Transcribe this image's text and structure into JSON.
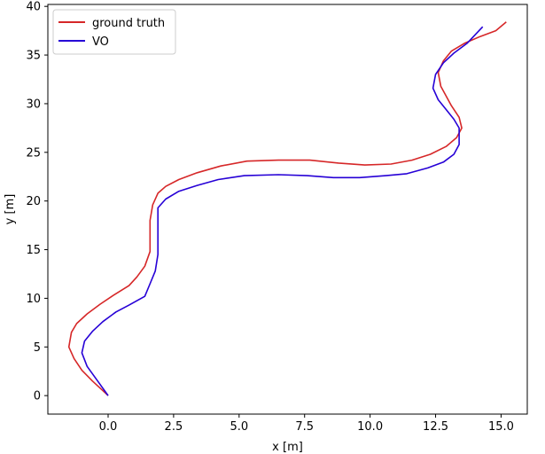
{
  "chart_data": {
    "type": "line",
    "xlabel": "x [m]",
    "ylabel": "y [m]",
    "xlim": [
      -2.3,
      16.0
    ],
    "ylim": [
      -1.9,
      40.2
    ],
    "xticks": [
      0.0,
      2.5,
      5.0,
      7.5,
      10.0,
      12.5,
      15.0
    ],
    "xtick_labels": [
      "0.0",
      "2.5",
      "5.0",
      "7.5",
      "10.0",
      "12.5",
      "15.0"
    ],
    "yticks": [
      0,
      5,
      10,
      15,
      20,
      25,
      30,
      35,
      40
    ],
    "ytick_labels": [
      "0",
      "5",
      "10",
      "15",
      "20",
      "25",
      "30",
      "35",
      "40"
    ],
    "grid": false,
    "legend_position": "top-left",
    "series": [
      {
        "name": "ground truth",
        "color": "#d62728",
        "x": [
          0.0,
          -0.6,
          -1.0,
          -1.3,
          -1.5,
          -1.4,
          -1.2,
          -0.8,
          -0.3,
          0.2,
          0.8,
          1.1,
          1.4,
          1.6,
          1.6,
          1.6,
          1.7,
          1.9,
          2.2,
          2.7,
          3.4,
          4.3,
          5.3,
          6.5,
          7.7,
          8.8,
          9.8,
          10.8,
          11.6,
          12.3,
          12.9,
          13.3,
          13.5,
          13.4,
          13.1,
          12.9,
          12.7,
          12.6,
          12.8,
          13.1,
          13.6,
          14.2,
          14.8,
          15.2
        ],
        "y": [
          0.0,
          1.5,
          2.6,
          3.8,
          5.0,
          6.5,
          7.4,
          8.4,
          9.4,
          10.3,
          11.3,
          12.2,
          13.3,
          14.8,
          16.5,
          18.0,
          19.6,
          20.8,
          21.5,
          22.2,
          22.9,
          23.6,
          24.1,
          24.2,
          24.2,
          23.9,
          23.7,
          23.8,
          24.2,
          24.8,
          25.6,
          26.5,
          27.5,
          28.6,
          29.8,
          30.8,
          31.8,
          33.2,
          34.4,
          35.4,
          36.2,
          36.9,
          37.5,
          38.4
        ]
      },
      {
        "name": "VO",
        "color": "#2600d6",
        "x": [
          0.0,
          -0.4,
          -0.8,
          -1.0,
          -0.9,
          -0.6,
          -0.2,
          0.3,
          0.8,
          1.4,
          1.6,
          1.8,
          1.9,
          1.9,
          1.9,
          1.9,
          2.2,
          2.7,
          3.4,
          4.2,
          5.2,
          6.5,
          7.6,
          8.6,
          9.6,
          10.6,
          11.4,
          12.2,
          12.8,
          13.2,
          13.4,
          13.4,
          13.2,
          12.9,
          12.6,
          12.4,
          12.5,
          12.8,
          13.2,
          13.7,
          14.3
        ],
        "y": [
          0.0,
          1.5,
          3.0,
          4.4,
          5.6,
          6.6,
          7.6,
          8.6,
          9.3,
          10.2,
          11.5,
          12.8,
          14.5,
          16.2,
          18.0,
          19.3,
          20.2,
          21.0,
          21.6,
          22.2,
          22.6,
          22.7,
          22.6,
          22.4,
          22.4,
          22.6,
          22.8,
          23.4,
          24.0,
          24.8,
          25.8,
          27.5,
          28.4,
          29.4,
          30.4,
          31.6,
          33.0,
          34.2,
          35.2,
          36.2,
          37.9
        ]
      }
    ]
  }
}
